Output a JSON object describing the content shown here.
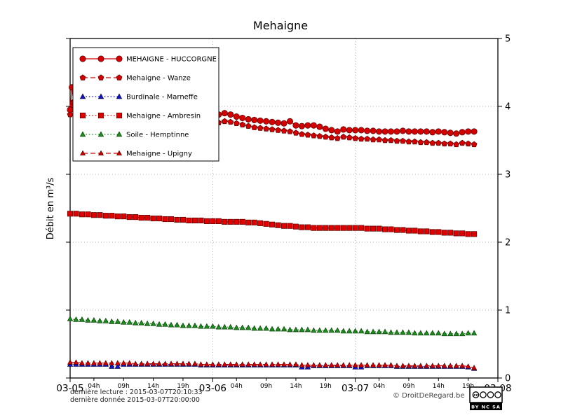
{
  "page": {
    "title": "Mehaigne",
    "ylabel": "Débit en m³/s",
    "footer": {
      "line1": "dernière lecture : 2015-03-07T20:10:33",
      "line2": "dernière donnée  2015-03-07T20:00:00",
      "copyright": "© DroitDeRegard.be",
      "license_cc": "cc",
      "license": "BY NC SA"
    }
  },
  "chart_data": {
    "type": "line",
    "title": "Mehaigne",
    "xlabel": "",
    "ylabel": "Débit en m³/s",
    "x_unit": "hours since 2015-03-05 00:00",
    "xlim": [
      0,
      72
    ],
    "ylim": [
      0,
      5
    ],
    "yticks": [
      0,
      1,
      2,
      3,
      4,
      5
    ],
    "x_major_ticks": [
      {
        "h": 0,
        "label": "03-05"
      },
      {
        "h": 24,
        "label": "03-06"
      },
      {
        "h": 48,
        "label": "03-07"
      },
      {
        "h": 72,
        "label": "03-08"
      }
    ],
    "x_minor_ticks": [
      {
        "h": 4,
        "label": "04h"
      },
      {
        "h": 9,
        "label": "09h"
      },
      {
        "h": 14,
        "label": "14h"
      },
      {
        "h": 19,
        "label": "19h"
      },
      {
        "h": 28,
        "label": "04h"
      },
      {
        "h": 33,
        "label": "09h"
      },
      {
        "h": 38,
        "label": "14h"
      },
      {
        "h": 43,
        "label": "19h"
      },
      {
        "h": 52,
        "label": "04h"
      },
      {
        "h": 57,
        "label": "09h"
      },
      {
        "h": 62,
        "label": "14h"
      },
      {
        "h": 67,
        "label": "19h"
      }
    ],
    "grid": {
      "h_lines": [
        1,
        2,
        3,
        4
      ],
      "v_lines": [
        24,
        48
      ]
    },
    "legend_position": "upper left",
    "series": [
      {
        "id": "huccorgne",
        "name": "MEHAIGNE - HUCCORGNE",
        "color": "#d40000",
        "edge": "#550000",
        "marker": "circle",
        "marker_size": 4.2,
        "line": "solid",
        "points": [
          [
            0,
            3.95
          ],
          [
            0.3,
            4.28
          ],
          [
            0.6,
            4.06
          ],
          [
            1,
            3.97
          ],
          [
            24,
            3.8
          ],
          [
            25,
            3.88
          ],
          [
            26,
            3.9
          ],
          [
            27,
            3.88
          ],
          [
            28,
            3.85
          ],
          [
            29,
            3.83
          ],
          [
            30,
            3.81
          ],
          [
            31,
            3.8
          ],
          [
            32,
            3.79
          ],
          [
            33,
            3.78
          ],
          [
            34,
            3.77
          ],
          [
            35,
            3.76
          ],
          [
            36,
            3.75
          ],
          [
            37,
            3.78
          ],
          [
            38,
            3.72
          ],
          [
            39,
            3.71
          ],
          [
            40,
            3.72
          ],
          [
            41,
            3.72
          ],
          [
            42,
            3.7
          ],
          [
            43,
            3.67
          ],
          [
            44,
            3.65
          ],
          [
            45,
            3.63
          ],
          [
            46,
            3.66
          ],
          [
            47,
            3.65
          ],
          [
            48,
            3.65
          ],
          [
            49,
            3.65
          ],
          [
            50,
            3.64
          ],
          [
            51,
            3.64
          ],
          [
            52,
            3.63
          ],
          [
            53,
            3.63
          ],
          [
            54,
            3.63
          ],
          [
            55,
            3.63
          ],
          [
            56,
            3.64
          ],
          [
            57,
            3.63
          ],
          [
            58,
            3.63
          ],
          [
            59,
            3.63
          ],
          [
            60,
            3.63
          ],
          [
            61,
            3.62
          ],
          [
            62,
            3.63
          ],
          [
            63,
            3.62
          ],
          [
            64,
            3.61
          ],
          [
            65,
            3.6
          ],
          [
            66,
            3.62
          ],
          [
            67,
            3.63
          ],
          [
            68,
            3.63
          ]
        ]
      },
      {
        "id": "wanze",
        "name": "Mehaigne - Wanze",
        "color": "#d40000",
        "edge": "#550000",
        "marker": "pentagon",
        "marker_size": 4.2,
        "line": "dashed",
        "points": [
          [
            0,
            3.88
          ],
          [
            0.5,
            4.02
          ],
          [
            1,
            3.92
          ],
          [
            24,
            3.72
          ],
          [
            25,
            3.76
          ],
          [
            26,
            3.78
          ],
          [
            27,
            3.77
          ],
          [
            28,
            3.75
          ],
          [
            29,
            3.73
          ],
          [
            30,
            3.71
          ],
          [
            31,
            3.69
          ],
          [
            32,
            3.68
          ],
          [
            33,
            3.67
          ],
          [
            34,
            3.66
          ],
          [
            35,
            3.65
          ],
          [
            36,
            3.64
          ],
          [
            37,
            3.63
          ],
          [
            38,
            3.61
          ],
          [
            39,
            3.59
          ],
          [
            40,
            3.58
          ],
          [
            41,
            3.57
          ],
          [
            42,
            3.56
          ],
          [
            43,
            3.55
          ],
          [
            44,
            3.54
          ],
          [
            45,
            3.53
          ],
          [
            46,
            3.55
          ],
          [
            47,
            3.54
          ],
          [
            48,
            3.53
          ],
          [
            49,
            3.52
          ],
          [
            50,
            3.52
          ],
          [
            51,
            3.51
          ],
          [
            52,
            3.51
          ],
          [
            53,
            3.5
          ],
          [
            54,
            3.5
          ],
          [
            55,
            3.49
          ],
          [
            56,
            3.49
          ],
          [
            57,
            3.48
          ],
          [
            58,
            3.48
          ],
          [
            59,
            3.47
          ],
          [
            60,
            3.47
          ],
          [
            61,
            3.46
          ],
          [
            62,
            3.46
          ],
          [
            63,
            3.45
          ],
          [
            64,
            3.45
          ],
          [
            65,
            3.44
          ],
          [
            66,
            3.46
          ],
          [
            67,
            3.45
          ],
          [
            68,
            3.44
          ]
        ]
      },
      {
        "id": "marneffe",
        "name": "Burdinale - Marneffe",
        "color": "#1515c8",
        "edge": "#00004a",
        "marker": "triangle",
        "marker_size": 3.8,
        "line": "dotted",
        "start_hour": 0,
        "step_hours": 1,
        "values": [
          0.2,
          0.2,
          0.2,
          0.2,
          0.2,
          0.2,
          0.2,
          0.17,
          0.17,
          0.2,
          0.2,
          0.2,
          0.2,
          0.2,
          0.2,
          0.2,
          0.2,
          0.2,
          0.2,
          0.2,
          0.2,
          0.2,
          0.19,
          0.19,
          0.19,
          0.19,
          0.19,
          0.19,
          0.19,
          0.19,
          0.19,
          0.19,
          0.19,
          0.19,
          0.19,
          0.19,
          0.19,
          0.19,
          0.19,
          0.16,
          0.16,
          0.18,
          0.18,
          0.18,
          0.18,
          0.18,
          0.18,
          0.18,
          0.16,
          0.16,
          0.18,
          0.18,
          0.18,
          0.18,
          0.18,
          0.17,
          0.17,
          0.17,
          0.17,
          0.17,
          0.17,
          0.17,
          0.17,
          0.17,
          0.17,
          0.17,
          0.17,
          0.16,
          0.14
        ]
      },
      {
        "id": "ambresin",
        "name": "Mehaigne - Ambresin",
        "color": "#e00000",
        "edge": "#550000",
        "marker": "square",
        "marker_size": 4.0,
        "line": "dotted",
        "start_hour": 0,
        "step_hours": 1,
        "values": [
          2.42,
          2.42,
          2.41,
          2.41,
          2.4,
          2.4,
          2.39,
          2.39,
          2.38,
          2.38,
          2.37,
          2.37,
          2.36,
          2.36,
          2.35,
          2.35,
          2.34,
          2.34,
          2.33,
          2.33,
          2.32,
          2.32,
          2.32,
          2.31,
          2.31,
          2.31,
          2.3,
          2.3,
          2.3,
          2.3,
          2.29,
          2.29,
          2.28,
          2.27,
          2.26,
          2.25,
          2.24,
          2.24,
          2.23,
          2.22,
          2.22,
          2.21,
          2.21,
          2.21,
          2.21,
          2.21,
          2.21,
          2.21,
          2.21,
          2.21,
          2.2,
          2.2,
          2.2,
          2.19,
          2.19,
          2.18,
          2.18,
          2.17,
          2.17,
          2.16,
          2.16,
          2.15,
          2.15,
          2.14,
          2.14,
          2.13,
          2.13,
          2.12,
          2.12
        ]
      },
      {
        "id": "hemptinne",
        "name": "Soile - Hemptinne",
        "color": "#1e8c1e",
        "edge": "#063d06",
        "marker": "triangle",
        "marker_size": 3.8,
        "line": "dotted",
        "start_hour": 0,
        "step_hours": 1,
        "values": [
          0.87,
          0.86,
          0.86,
          0.85,
          0.85,
          0.84,
          0.84,
          0.83,
          0.83,
          0.82,
          0.82,
          0.81,
          0.81,
          0.8,
          0.8,
          0.79,
          0.79,
          0.78,
          0.78,
          0.77,
          0.77,
          0.77,
          0.76,
          0.76,
          0.76,
          0.75,
          0.75,
          0.75,
          0.74,
          0.74,
          0.74,
          0.73,
          0.73,
          0.73,
          0.72,
          0.72,
          0.72,
          0.71,
          0.71,
          0.71,
          0.71,
          0.7,
          0.7,
          0.7,
          0.7,
          0.7,
          0.69,
          0.69,
          0.69,
          0.69,
          0.68,
          0.68,
          0.68,
          0.68,
          0.67,
          0.67,
          0.67,
          0.67,
          0.66,
          0.66,
          0.66,
          0.66,
          0.66,
          0.65,
          0.65,
          0.65,
          0.65,
          0.66,
          0.66
        ]
      },
      {
        "id": "upigny",
        "name": "Mehaigne - Upigny",
        "color": "#d40000",
        "edge": "#550000",
        "marker": "triangle",
        "marker_size": 3.6,
        "line": "dashed",
        "start_hour": 0,
        "step_hours": 1,
        "values": [
          0.23,
          0.23,
          0.22,
          0.22,
          0.22,
          0.22,
          0.22,
          0.22,
          0.22,
          0.22,
          0.22,
          0.21,
          0.21,
          0.21,
          0.21,
          0.21,
          0.21,
          0.21,
          0.21,
          0.21,
          0.21,
          0.21,
          0.2,
          0.2,
          0.2,
          0.2,
          0.2,
          0.2,
          0.2,
          0.2,
          0.2,
          0.2,
          0.2,
          0.2,
          0.2,
          0.2,
          0.2,
          0.2,
          0.2,
          0.19,
          0.19,
          0.19,
          0.19,
          0.19,
          0.19,
          0.19,
          0.19,
          0.19,
          0.19,
          0.19,
          0.19,
          0.19,
          0.19,
          0.19,
          0.19,
          0.18,
          0.18,
          0.18,
          0.18,
          0.18,
          0.18,
          0.18,
          0.18,
          0.18,
          0.18,
          0.18,
          0.18,
          0.17,
          0.15
        ]
      }
    ]
  }
}
